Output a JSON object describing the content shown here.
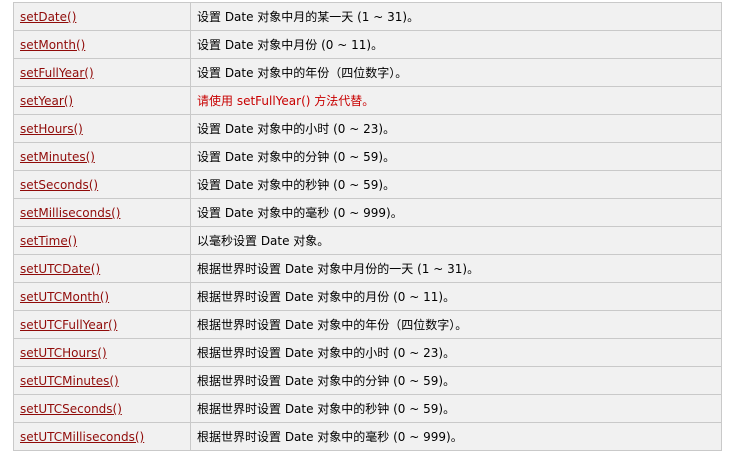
{
  "rows": [
    {
      "method": "setDate()",
      "description": "设置 Date 对象中月的某一天 (1 ~ 31)。",
      "deprecated": false
    },
    {
      "method": "setMonth()",
      "description": "设置 Date 对象中月份 (0 ~ 11)。",
      "deprecated": false
    },
    {
      "method": "setFullYear()",
      "description": "设置 Date 对象中的年份（四位数字）。",
      "deprecated": false
    },
    {
      "method": "setYear()",
      "description": "请使用 setFullYear() 方法代替。",
      "deprecated": true
    },
    {
      "method": "setHours()",
      "description": "设置 Date 对象中的小时 (0 ~ 23)。",
      "deprecated": false
    },
    {
      "method": "setMinutes()",
      "description": "设置 Date 对象中的分钟 (0 ~ 59)。",
      "deprecated": false
    },
    {
      "method": "setSeconds()",
      "description": "设置 Date 对象中的秒钟 (0 ~ 59)。",
      "deprecated": false
    },
    {
      "method": "setMilliseconds()",
      "description": "设置 Date 对象中的毫秒 (0 ~ 999)。",
      "deprecated": false
    },
    {
      "method": "setTime()",
      "description": "以毫秒设置 Date 对象。",
      "deprecated": false
    },
    {
      "method": "setUTCDate()",
      "description": "根据世界时设置 Date 对象中月份的一天 (1 ~ 31)。",
      "deprecated": false
    },
    {
      "method": "setUTCMonth()",
      "description": "根据世界时设置 Date 对象中的月份 (0 ~ 11)。",
      "deprecated": false
    },
    {
      "method": "setUTCFullYear()",
      "description": "根据世界时设置 Date 对象中的年份（四位数字）。",
      "deprecated": false
    },
    {
      "method": "setUTCHours()",
      "description": "根据世界时设置 Date 对象中的小时 (0 ~ 23)。",
      "deprecated": false
    },
    {
      "method": "setUTCMinutes()",
      "description": "根据世界时设置 Date 对象中的分钟 (0 ~ 59)。",
      "deprecated": false
    },
    {
      "method": "setUTCSeconds()",
      "description": "根据世界时设置 Date 对象中的秒钟 (0 ~ 59)。",
      "deprecated": false
    },
    {
      "method": "setUTCMilliseconds()",
      "description": "根据世界时设置 Date 对象中的毫秒 (0 ~ 999)。",
      "deprecated": false
    }
  ],
  "colors": {
    "link": "#900b09",
    "deprecated_text": "#c80000",
    "cell_background": "#f1f1f1",
    "border": "#c9c9c9"
  }
}
